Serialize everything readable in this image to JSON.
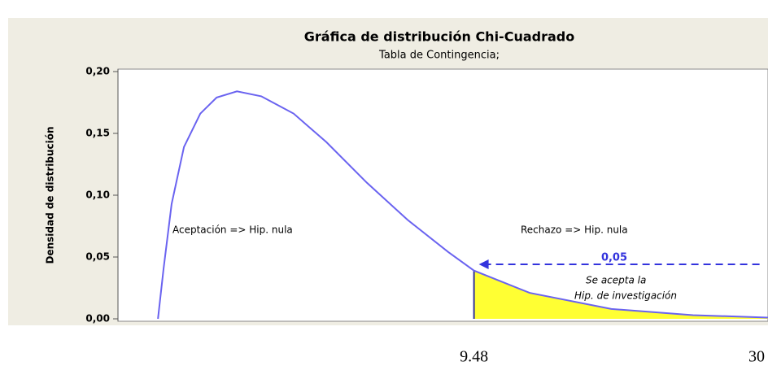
{
  "chart_data": {
    "type": "line",
    "title": "Gráfica de distribución Chi-Cuadrado",
    "subtitle": "Tabla de Contingencia;",
    "ylabel": "Densidad de distribución",
    "xlim": [
      -1.2,
      18.3
    ],
    "ylim": [
      0,
      0.2
    ],
    "yticks": [
      {
        "value": 0,
        "label": "0,00"
      },
      {
        "value": 0.05,
        "label": "0,05"
      },
      {
        "value": 0.1,
        "label": "0,10"
      },
      {
        "value": 0.15,
        "label": "0,15"
      },
      {
        "value": 0.2,
        "label": "0,20"
      }
    ],
    "series": [
      {
        "name": "Chi-Cuadrado",
        "color": "#6a63f0",
        "x": [
          0,
          0.17,
          0.41,
          0.78,
          1.27,
          1.76,
          2.37,
          3.1,
          4.07,
          5.05,
          6.27,
          7.49,
          8.71,
          9.48,
          11.15,
          13.6,
          16.05,
          18.3
        ],
        "values": [
          0,
          0.041,
          0.093,
          0.139,
          0.166,
          0.179,
          0.184,
          0.18,
          0.166,
          0.143,
          0.11,
          0.08,
          0.054,
          0.039,
          0.021,
          0.008,
          0.003,
          0.001
        ]
      }
    ],
    "critical": 9.48,
    "shade_color": "#ffff33",
    "alpha_label": "0,05",
    "annotations": [
      "Aceptación => Hip. nula",
      "Rechazo => Hip. nula",
      "Se acepta la",
      "Hip. de investigación"
    ],
    "below_labels": [
      "30"
    ]
  }
}
